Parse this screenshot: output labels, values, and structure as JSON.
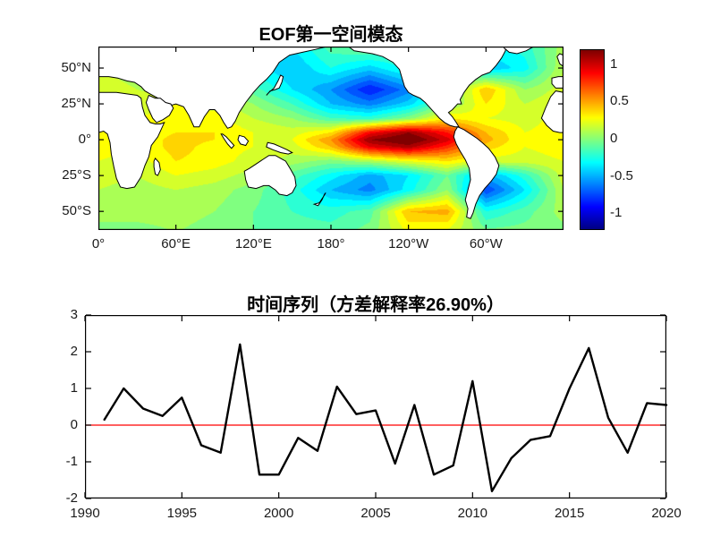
{
  "figure": {
    "background": "#ffffff"
  },
  "chart_data": [
    {
      "type": "heatmap",
      "title": "EOF第一空间模态",
      "x_tick_labels": [
        "0°",
        "60°E",
        "120°E",
        "180°",
        "120°W",
        "60°W"
      ],
      "x_tick_lons": [
        0,
        60,
        120,
        180,
        240,
        300
      ],
      "y_tick_labels": [
        "50°N",
        "25°N",
        "0°",
        "25°S",
        "50°S"
      ],
      "y_tick_lats": [
        50,
        25,
        0,
        -25,
        -50
      ],
      "lon_range": [
        0,
        360
      ],
      "lat_range": [
        -63,
        65
      ],
      "colormap": "jet",
      "clim": [
        -1.2,
        1.2
      ],
      "contour_step": 0.1,
      "colorbar_tick_labels": [
        "1",
        "0.5",
        "0",
        "-0.5",
        "-1"
      ],
      "colorbar_tick_values": [
        1,
        0.5,
        0,
        -0.5,
        -1
      ],
      "grid_lons": [
        0,
        30,
        60,
        90,
        120,
        150,
        180,
        210,
        240,
        270,
        300,
        330,
        360
      ],
      "grid_lats": [
        65,
        50,
        35,
        25,
        15,
        5,
        0,
        -5,
        -15,
        -25,
        -35,
        -50,
        -65
      ],
      "grid_values": [
        [
          0.1,
          0.15,
          0.1,
          0.0,
          -0.2,
          -0.35,
          -0.1,
          0.0,
          -0.15,
          -0.2,
          -0.3,
          -0.2,
          0.1
        ],
        [
          0.15,
          0.1,
          0.05,
          0.0,
          -0.3,
          -0.45,
          -0.25,
          -0.4,
          -0.2,
          0.1,
          -0.45,
          -0.3,
          0.15
        ],
        [
          0.2,
          0.15,
          0.1,
          0.1,
          -0.1,
          -0.35,
          -0.55,
          -0.85,
          -0.6,
          -0.1,
          0.45,
          0.05,
          0.2
        ],
        [
          0.25,
          0.2,
          0.25,
          0.2,
          0.05,
          -0.15,
          -0.45,
          -0.6,
          -0.4,
          0.0,
          0.35,
          0.15,
          0.25
        ],
        [
          0.3,
          0.25,
          0.3,
          0.3,
          0.15,
          0.05,
          -0.15,
          -0.2,
          0.0,
          0.35,
          0.25,
          0.2,
          0.3
        ],
        [
          0.3,
          0.25,
          0.35,
          0.35,
          0.25,
          0.2,
          0.35,
          0.9,
          1.15,
          0.85,
          0.45,
          0.25,
          0.3
        ],
        [
          0.3,
          0.25,
          0.4,
          0.35,
          0.25,
          0.25,
          0.55,
          1.15,
          1.3,
          1.0,
          0.5,
          0.25,
          0.3
        ],
        [
          0.3,
          0.25,
          0.4,
          0.3,
          0.25,
          0.2,
          0.45,
          0.95,
          1.1,
          0.8,
          0.4,
          0.25,
          0.3
        ],
        [
          0.25,
          0.2,
          0.35,
          0.3,
          0.2,
          0.1,
          0.0,
          0.1,
          0.25,
          0.35,
          0.2,
          0.2,
          0.25
        ],
        [
          0.2,
          0.15,
          0.25,
          0.2,
          0.1,
          -0.1,
          -0.3,
          -0.5,
          -0.35,
          -0.05,
          -0.5,
          -0.2,
          0.2
        ],
        [
          0.15,
          0.1,
          0.15,
          0.1,
          0.0,
          -0.2,
          -0.45,
          -0.6,
          -0.3,
          0.05,
          -0.75,
          -0.35,
          0.15
        ],
        [
          0.1,
          0.1,
          0.1,
          0.05,
          -0.05,
          -0.15,
          -0.2,
          -0.1,
          0.45,
          0.5,
          -0.25,
          -0.1,
          0.1
        ],
        [
          0.0,
          0.0,
          0.05,
          0.0,
          -0.05,
          -0.1,
          -0.1,
          0.0,
          0.25,
          0.2,
          0.0,
          0.0,
          0.0
        ]
      ],
      "land_polygons": {
        "eurasia": [
          [
            0,
            70
          ],
          [
            180,
            70
          ],
          [
            177,
            65
          ],
          [
            168,
            63
          ],
          [
            158,
            61
          ],
          [
            148,
            59
          ],
          [
            140,
            54
          ],
          [
            135,
            47
          ],
          [
            130,
            42
          ],
          [
            125,
            38
          ],
          [
            120,
            33
          ],
          [
            114,
            26
          ],
          [
            109,
            19
          ],
          [
            106,
            13
          ],
          [
            103,
            9
          ],
          [
            100,
            8
          ],
          [
            97,
            12
          ],
          [
            94,
            17
          ],
          [
            90,
            21
          ],
          [
            86,
            21
          ],
          [
            82,
            16
          ],
          [
            78,
            9
          ],
          [
            74,
            9
          ],
          [
            70,
            17
          ],
          [
            66,
            23
          ],
          [
            60,
            25
          ],
          [
            56,
            24
          ],
          [
            52,
            25
          ],
          [
            48,
            28
          ],
          [
            44,
            30
          ],
          [
            40,
            32
          ],
          [
            36,
            34
          ],
          [
            33,
            37
          ],
          [
            28,
            40
          ],
          [
            22,
            41
          ],
          [
            15,
            43
          ],
          [
            8,
            44
          ],
          [
            0,
            44
          ]
        ],
        "arabia": [
          [
            39,
            31
          ],
          [
            44,
            29
          ],
          [
            48,
            29
          ],
          [
            52,
            26
          ],
          [
            56,
            25
          ],
          [
            58,
            22
          ],
          [
            55,
            17
          ],
          [
            50,
            14
          ],
          [
            45,
            12
          ],
          [
            42,
            15
          ],
          [
            39,
            21
          ],
          [
            37,
            26
          ]
        ],
        "africa": [
          [
            0,
            33
          ],
          [
            8,
            33
          ],
          [
            14,
            33
          ],
          [
            22,
            32
          ],
          [
            30,
            31
          ],
          [
            33,
            29
          ],
          [
            34,
            23
          ],
          [
            36,
            17
          ],
          [
            40,
            12
          ],
          [
            44,
            11
          ],
          [
            48,
            11
          ],
          [
            51,
            12
          ],
          [
            46,
            2
          ],
          [
            41,
            -4
          ],
          [
            39,
            -12
          ],
          [
            36,
            -18
          ],
          [
            33,
            -26
          ],
          [
            28,
            -33
          ],
          [
            22,
            -34
          ],
          [
            17,
            -33
          ],
          [
            14,
            -27
          ],
          [
            12,
            -19
          ],
          [
            10,
            -10
          ],
          [
            9,
            -2
          ],
          [
            7,
            4
          ],
          [
            4,
            6
          ],
          [
            0,
            5
          ]
        ],
        "madagascar": [
          [
            44,
            -13
          ],
          [
            47,
            -16
          ],
          [
            48,
            -21
          ],
          [
            46,
            -25
          ],
          [
            44,
            -24
          ],
          [
            43,
            -19
          ],
          [
            43,
            -15
          ]
        ],
        "australia": [
          [
            113,
            -22
          ],
          [
            114,
            -28
          ],
          [
            116,
            -33
          ],
          [
            122,
            -34
          ],
          [
            128,
            -32
          ],
          [
            132,
            -32
          ],
          [
            137,
            -35
          ],
          [
            140,
            -38
          ],
          [
            146,
            -39
          ],
          [
            150,
            -37
          ],
          [
            153,
            -32
          ],
          [
            152,
            -26
          ],
          [
            149,
            -21
          ],
          [
            145,
            -15
          ],
          [
            141,
            -13
          ],
          [
            137,
            -11
          ],
          [
            132,
            -11
          ],
          [
            127,
            -14
          ],
          [
            122,
            -17
          ],
          [
            117,
            -20
          ]
        ],
        "new_zealand": [
          [
            167,
            -45
          ],
          [
            170,
            -46
          ],
          [
            173,
            -42
          ],
          [
            175,
            -38
          ],
          [
            176,
            -37
          ],
          [
            174,
            -40
          ],
          [
            171,
            -44
          ]
        ],
        "japan": [
          [
            130,
            31
          ],
          [
            133,
            34
          ],
          [
            137,
            35
          ],
          [
            140,
            36
          ],
          [
            142,
            40
          ],
          [
            143,
            44
          ],
          [
            141,
            45
          ],
          [
            139,
            41
          ],
          [
            136,
            36
          ],
          [
            132,
            33
          ]
        ],
        "sumatra": [
          [
            96,
            4
          ],
          [
            99,
            2
          ],
          [
            102,
            -1
          ],
          [
            105,
            -4
          ],
          [
            103,
            -6
          ],
          [
            100,
            -3
          ],
          [
            97,
            1
          ],
          [
            95,
            4
          ]
        ],
        "borneo": [
          [
            109,
            3
          ],
          [
            113,
            2
          ],
          [
            116,
            -1
          ],
          [
            114,
            -4
          ],
          [
            110,
            -3
          ],
          [
            108,
            0
          ]
        ],
        "new_guinea": [
          [
            131,
            -2
          ],
          [
            136,
            -3
          ],
          [
            141,
            -5
          ],
          [
            146,
            -7
          ],
          [
            150,
            -9
          ],
          [
            147,
            -10
          ],
          [
            141,
            -9
          ],
          [
            135,
            -7
          ],
          [
            130,
            -5
          ]
        ],
        "north_america": [
          [
            192,
            66
          ],
          [
            198,
            62
          ],
          [
            205,
            61
          ],
          [
            212,
            60
          ],
          [
            220,
            58
          ],
          [
            228,
            54
          ],
          [
            233,
            49
          ],
          [
            235,
            43
          ],
          [
            237,
            37
          ],
          [
            240,
            33
          ],
          [
            244,
            31
          ],
          [
            249,
            29
          ],
          [
            253,
            26
          ],
          [
            257,
            22
          ],
          [
            261,
            18
          ],
          [
            264,
            15
          ],
          [
            268,
            12
          ],
          [
            272,
            10
          ],
          [
            276,
            9
          ],
          [
            279,
            9
          ],
          [
            277,
            12
          ],
          [
            274,
            16
          ],
          [
            271,
            19
          ],
          [
            274,
            21
          ],
          [
            278,
            25
          ],
          [
            281,
            25
          ],
          [
            280,
            28
          ],
          [
            283,
            33
          ],
          [
            287,
            38
          ],
          [
            292,
            42
          ],
          [
            297,
            45
          ],
          [
            303,
            47
          ],
          [
            308,
            52
          ],
          [
            312,
            57
          ],
          [
            315,
            62
          ],
          [
            316,
            70
          ],
          [
            192,
            70
          ]
        ],
        "south_america": [
          [
            278,
            9
          ],
          [
            283,
            7
          ],
          [
            288,
            4
          ],
          [
            293,
            1
          ],
          [
            297,
            -2
          ],
          [
            302,
            -6
          ],
          [
            307,
            -12
          ],
          [
            310,
            -18
          ],
          [
            308,
            -24
          ],
          [
            304,
            -29
          ],
          [
            299,
            -34
          ],
          [
            295,
            -39
          ],
          [
            292,
            -45
          ],
          [
            290,
            -51
          ],
          [
            288,
            -55
          ],
          [
            285,
            -54
          ],
          [
            286,
            -48
          ],
          [
            284,
            -42
          ],
          [
            286,
            -35
          ],
          [
            288,
            -28
          ],
          [
            287,
            -20
          ],
          [
            284,
            -14
          ],
          [
            280,
            -8
          ],
          [
            277,
            -3
          ],
          [
            275,
            2
          ],
          [
            276,
            6
          ]
        ],
        "greenland": [
          [
            312,
            70
          ],
          [
            314,
            64
          ],
          [
            318,
            61
          ],
          [
            324,
            60
          ],
          [
            331,
            62
          ],
          [
            337,
            65
          ],
          [
            340,
            68
          ],
          [
            340,
            70
          ]
        ],
        "uk": [
          [
            355,
            58
          ],
          [
            357,
            53
          ],
          [
            360,
            51
          ],
          [
            360,
            59
          ],
          [
            357,
            60
          ]
        ],
        "iberia": [
          [
            351,
            43
          ],
          [
            356,
            44
          ],
          [
            360,
            44
          ],
          [
            360,
            36
          ],
          [
            354,
            36
          ],
          [
            351,
            39
          ]
        ],
        "west_africa": [
          [
            343,
            15
          ],
          [
            347,
            10
          ],
          [
            352,
            6
          ],
          [
            357,
            5
          ],
          [
            360,
            5
          ],
          [
            360,
            33
          ],
          [
            354,
            34
          ],
          [
            350,
            30
          ],
          [
            346,
            22
          ]
        ]
      }
    },
    {
      "type": "line",
      "title": "时间序列（方差解释率26.90%）",
      "variance_explained_pct": 26.9,
      "x": [
        1991,
        1992,
        1993,
        1994,
        1995,
        1996,
        1997,
        1998,
        1999,
        2000,
        2001,
        2002,
        2003,
        2004,
        2005,
        2006,
        2007,
        2008,
        2009,
        2010,
        2011,
        2012,
        2013,
        2014,
        2015,
        2016,
        2017,
        2018,
        2019,
        2020
      ],
      "y": [
        0.15,
        1.0,
        0.45,
        0.25,
        0.75,
        -0.55,
        -0.75,
        2.2,
        -1.35,
        -1.35,
        -0.35,
        -0.7,
        1.05,
        0.3,
        0.4,
        -1.05,
        0.55,
        -1.35,
        -1.1,
        1.2,
        -1.8,
        -0.9,
        -0.4,
        -0.3,
        1.0,
        2.1,
        0.2,
        -0.75,
        0.6,
        0.55
      ],
      "xlim": [
        1990,
        2020
      ],
      "ylim": [
        -2,
        3
      ],
      "x_ticks": [
        1990,
        1995,
        2000,
        2005,
        2010,
        2015,
        2020
      ],
      "y_ticks": [
        -2,
        -1,
        0,
        1,
        2,
        3
      ],
      "line_color": "#000000",
      "line_width": 2.4,
      "zero_line": {
        "value": 0,
        "color": "#ff0000"
      },
      "grid": false,
      "legend": false
    }
  ]
}
